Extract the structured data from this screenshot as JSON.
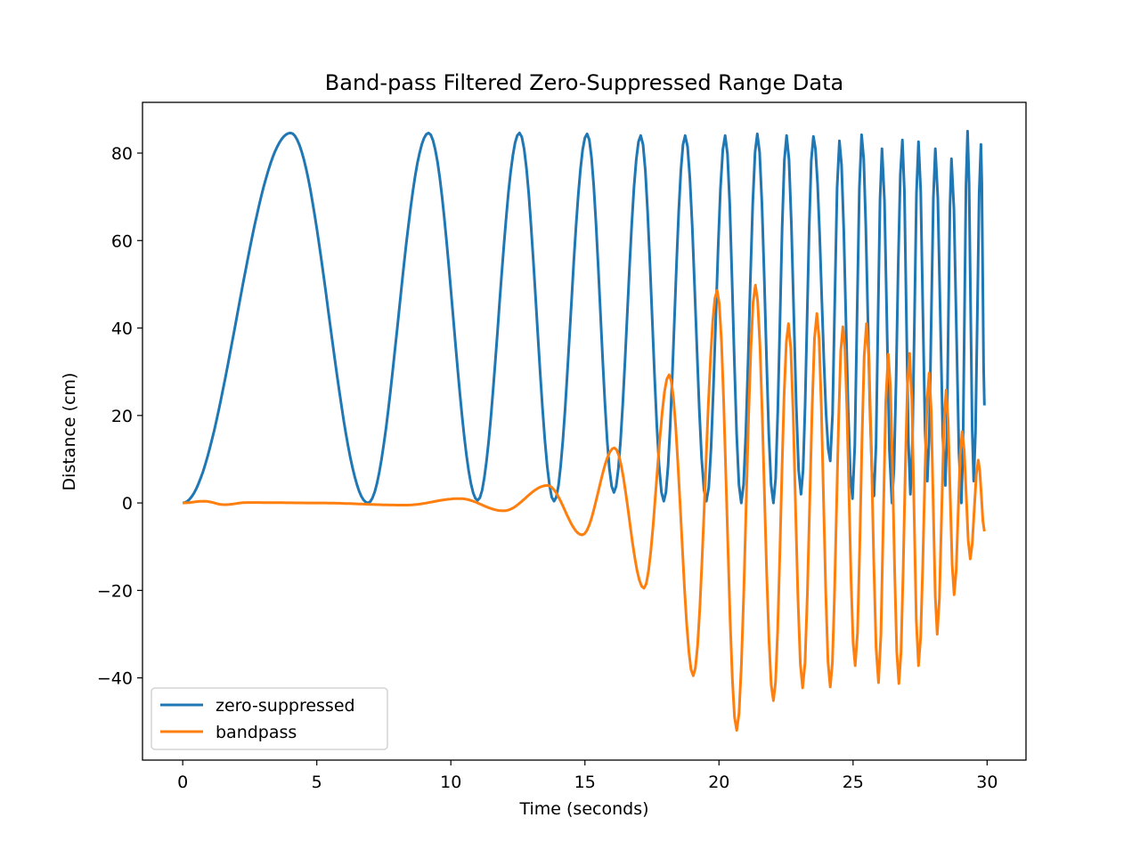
{
  "chart_data": {
    "type": "line",
    "title": "Band-pass Filtered Zero-Suppressed Range Data",
    "xlabel": "Time (seconds)",
    "ylabel": "Distance (cm)",
    "xlim": [
      -1.5,
      31.45
    ],
    "ylim": [
      -58.8,
      91.6
    ],
    "xticks": [
      0,
      5,
      10,
      15,
      20,
      25,
      30
    ],
    "yticks": [
      -40,
      -20,
      0,
      20,
      40,
      60,
      80
    ],
    "ytick_labels": [
      "−40",
      "−20",
      "0",
      "20",
      "40",
      "60",
      "80"
    ],
    "grid": false,
    "legend_position": "lower-left",
    "series": [
      {
        "name": "zero-suppressed",
        "color": "#1f77b4",
        "extrema": [
          [
            0,
            0
          ],
          [
            4.02,
            84.6
          ],
          [
            6.91,
            0
          ],
          [
            9.17,
            84.6
          ],
          [
            11.0,
            0.6
          ],
          [
            12.56,
            84.6
          ],
          [
            13.85,
            0.4
          ],
          [
            15.08,
            84.4
          ],
          [
            16.08,
            2.4
          ],
          [
            17.08,
            84
          ],
          [
            17.94,
            0.4
          ],
          [
            18.74,
            84
          ],
          [
            19.53,
            0.4
          ],
          [
            20.23,
            84
          ],
          [
            20.83,
            0
          ],
          [
            21.43,
            84.4
          ],
          [
            22.03,
            0
          ],
          [
            22.52,
            84
          ],
          [
            23.06,
            2
          ],
          [
            23.52,
            83.8
          ],
          [
            24.15,
            9.6
          ],
          [
            24.49,
            82.8
          ],
          [
            24.98,
            1
          ],
          [
            25.32,
            84.2
          ],
          [
            25.78,
            1.6
          ],
          [
            26.08,
            81
          ],
          [
            26.45,
            0
          ],
          [
            26.84,
            83
          ],
          [
            27.14,
            2
          ],
          [
            27.44,
            82.6
          ],
          [
            27.77,
            5
          ],
          [
            28.07,
            81
          ],
          [
            28.44,
            4
          ],
          [
            28.67,
            78.7
          ],
          [
            29.04,
            0
          ],
          [
            29.27,
            85
          ],
          [
            29.5,
            5
          ],
          [
            29.77,
            82
          ],
          [
            29.9,
            22.3
          ]
        ]
      },
      {
        "name": "bandpass",
        "color": "#ff7f0e",
        "extrema": [
          [
            0,
            0
          ],
          [
            0.8,
            0.4
          ],
          [
            1.56,
            -0.4
          ],
          [
            2.4,
            0.1
          ],
          [
            5.0,
            0
          ],
          [
            8.3,
            -0.5
          ],
          [
            10.33,
            1
          ],
          [
            11.96,
            -1.8
          ],
          [
            13.6,
            4.0
          ],
          [
            14.9,
            -7.3
          ],
          [
            16.1,
            12.6
          ],
          [
            17.2,
            -19.5
          ],
          [
            18.14,
            29.3
          ],
          [
            19.04,
            -39.5
          ],
          [
            19.93,
            48.6
          ],
          [
            20.66,
            -52
          ],
          [
            21.36,
            49.8
          ],
          [
            22.03,
            -45.2
          ],
          [
            22.59,
            41
          ],
          [
            23.12,
            -42.3
          ],
          [
            23.65,
            43.3
          ],
          [
            24.15,
            -42.1
          ],
          [
            24.62,
            40.3
          ],
          [
            25.08,
            -37.2
          ],
          [
            25.5,
            41
          ],
          [
            25.95,
            -41.1
          ],
          [
            26.31,
            34
          ],
          [
            26.71,
            -41.3
          ],
          [
            27.11,
            34.2
          ],
          [
            27.44,
            -37.2
          ],
          [
            27.84,
            29.7
          ],
          [
            28.14,
            -30
          ],
          [
            28.47,
            25.8
          ],
          [
            28.77,
            -21
          ],
          [
            29.07,
            16.3
          ],
          [
            29.37,
            -12.8
          ],
          [
            29.67,
            9.8
          ],
          [
            29.9,
            -6.5
          ]
        ]
      }
    ]
  }
}
